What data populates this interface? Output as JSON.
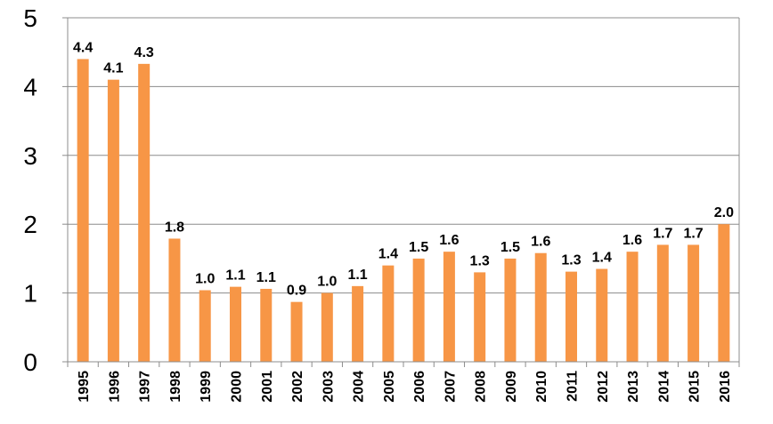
{
  "chart_data": {
    "type": "bar",
    "categories": [
      "1995",
      "1996",
      "1997",
      "1998",
      "1999",
      "2000",
      "2001",
      "2002",
      "2003",
      "2004",
      "2005",
      "2006",
      "2007",
      "2008",
      "2009",
      "2010",
      "2011",
      "2012",
      "2013",
      "2014",
      "2015",
      "2016"
    ],
    "values": [
      4.4,
      4.1,
      4.33,
      1.79,
      1.04,
      1.09,
      1.06,
      0.87,
      1.0,
      1.1,
      1.4,
      1.5,
      1.6,
      1.3,
      1.5,
      1.58,
      1.31,
      1.35,
      1.6,
      1.7,
      1.7,
      2.0
    ],
    "data_labels": [
      "4.4",
      "4.1",
      "4.3",
      "1.8",
      "1.0",
      "1.1",
      "1.1",
      "0.9",
      "1.0",
      "1.1",
      "1.4",
      "1.5",
      "1.6",
      "1.3",
      "1.5",
      "1.6",
      "1.3",
      "1.4",
      "1.6",
      "1.7",
      "1.7",
      "2.0"
    ],
    "yticks": [
      "0",
      "1",
      "2",
      "3",
      "4",
      "5"
    ],
    "ylim": [
      0,
      5
    ],
    "grid": true,
    "bar_color": "#F79646",
    "title": "",
    "xlabel": "",
    "ylabel": ""
  }
}
